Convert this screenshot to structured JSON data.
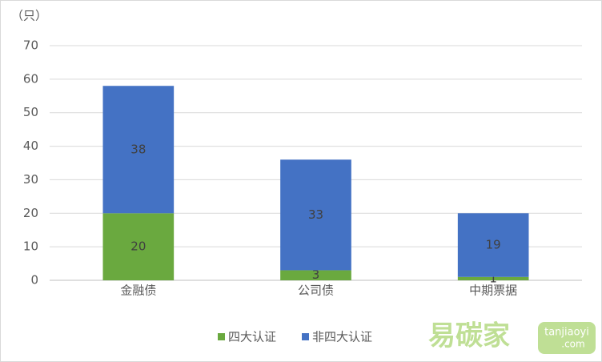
{
  "chart_data": {
    "type": "stacked_bar",
    "y_unit": "（只）",
    "categories": [
      "金融债",
      "公司债",
      "中期票据"
    ],
    "series": [
      {
        "name": "四大认证",
        "color": "#6aa93f",
        "values": [
          20,
          3,
          1
        ]
      },
      {
        "name": "非四大认证",
        "color": "#4472c4",
        "values": [
          38,
          33,
          19
        ]
      }
    ],
    "ylim": [
      0,
      70
    ],
    "yticks": [
      0,
      10,
      20,
      30,
      40,
      50,
      60,
      70
    ],
    "grid": true,
    "legend": "bottom"
  },
  "watermark": {
    "brand": "易碳家",
    "site": "tanjiaoyi",
    "domain": ".com"
  }
}
